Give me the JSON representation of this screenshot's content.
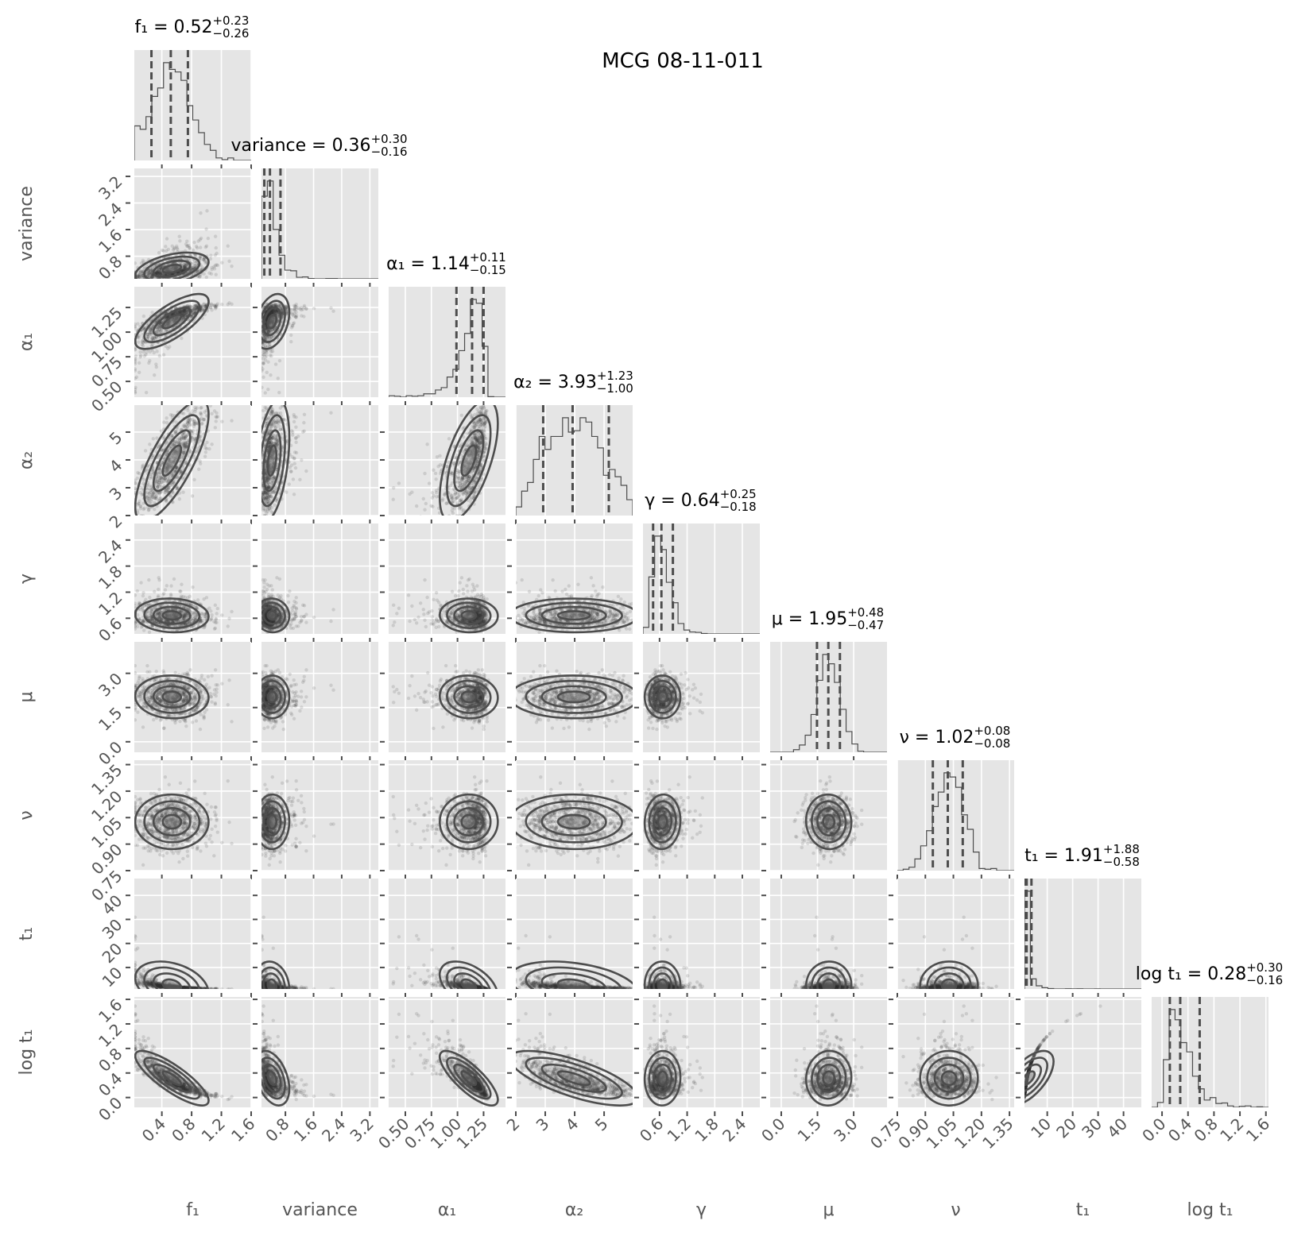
{
  "chart_data": {
    "type": "scatter",
    "title": "MCG 08-11-011",
    "colors": {
      "panel_bg": "#e5e5e5",
      "grid": "#ffffff",
      "ink": "#4d4d4d",
      "text": "#555555"
    },
    "params": [
      {
        "label": "f₁",
        "median": "0.52",
        "plus": "+0.23",
        "minus": "−0.26",
        "q": [
          0.26,
          0.52,
          0.75
        ],
        "range": [
          0.03,
          1.6
        ],
        "ticks": [
          0.4,
          0.8,
          1.2,
          1.6
        ],
        "tick_labels": [
          "0.4",
          "0.8",
          "1.2",
          "1.6"
        ]
      },
      {
        "label": "variance",
        "median": "0.36",
        "plus": "+0.30",
        "minus": "−0.16",
        "q": [
          0.2,
          0.36,
          0.66
        ],
        "range": [
          0.12,
          3.44
        ],
        "ticks": [
          0.8,
          1.6,
          2.4,
          3.2
        ],
        "tick_labels": [
          "0.8",
          "1.6",
          "2.4",
          "3.2"
        ]
      },
      {
        "label": "α₁",
        "median": "1.14",
        "plus": "+0.11",
        "minus": "−0.15",
        "q": [
          0.99,
          1.14,
          1.25
        ],
        "range": [
          0.34,
          1.46
        ],
        "ticks": [
          0.5,
          0.75,
          1.0,
          1.25
        ],
        "tick_labels": [
          "0.50",
          "0.75",
          "1.00",
          "1.25"
        ]
      },
      {
        "label": "α₂",
        "median": "3.93",
        "plus": "+1.23",
        "minus": "−1.00",
        "q": [
          2.93,
          3.93,
          5.16
        ],
        "range": [
          2.0,
          5.97
        ],
        "ticks": [
          2,
          3,
          4,
          5
        ],
        "tick_labels": [
          "2",
          "3",
          "4",
          "5"
        ]
      },
      {
        "label": "γ",
        "median": "0.64",
        "plus": "+0.25",
        "minus": "−0.18",
        "q": [
          0.46,
          0.64,
          0.89
        ],
        "range": [
          0.24,
          2.78
        ],
        "ticks": [
          0.6,
          1.2,
          1.8,
          2.4
        ],
        "tick_labels": [
          "0.6",
          "1.2",
          "1.8",
          "2.4"
        ]
      },
      {
        "label": "μ",
        "median": "1.95",
        "plus": "+0.48",
        "minus": "−0.47",
        "q": [
          1.48,
          1.95,
          2.43
        ],
        "range": [
          -0.46,
          4.38
        ],
        "ticks": [
          0.0,
          1.5,
          3.0
        ],
        "tick_labels": [
          "0.0",
          "1.5",
          "3.0"
        ]
      },
      {
        "label": "ν",
        "median": "1.02",
        "plus": "+0.08",
        "minus": "−0.08",
        "q": [
          0.94,
          1.02,
          1.1
        ],
        "range": [
          0.75,
          1.375
        ],
        "ticks": [
          0.75,
          0.9,
          1.05,
          1.2,
          1.35
        ],
        "tick_labels": [
          "0.75",
          "0.90",
          "1.05",
          "1.20",
          "1.35"
        ]
      },
      {
        "label": "t₁",
        "median": "1.91",
        "plus": "+1.88",
        "minus": "−0.58",
        "q": [
          1.33,
          1.91,
          3.79
        ],
        "range": [
          1.05,
          47
        ],
        "ticks": [
          10,
          20,
          30,
          40
        ],
        "tick_labels": [
          "10",
          "20",
          "30",
          "40"
        ]
      },
      {
        "label": "log t₁",
        "median": "0.28",
        "plus": "+0.30",
        "minus": "−0.16",
        "q": [
          0.12,
          0.28,
          0.58
        ],
        "range": [
          -0.16,
          1.64
        ],
        "ticks": [
          0.0,
          0.4,
          0.8,
          1.2,
          1.6
        ],
        "tick_labels": [
          "0.0",
          "0.4",
          "0.8",
          "1.2",
          "1.6"
        ]
      }
    ]
  }
}
